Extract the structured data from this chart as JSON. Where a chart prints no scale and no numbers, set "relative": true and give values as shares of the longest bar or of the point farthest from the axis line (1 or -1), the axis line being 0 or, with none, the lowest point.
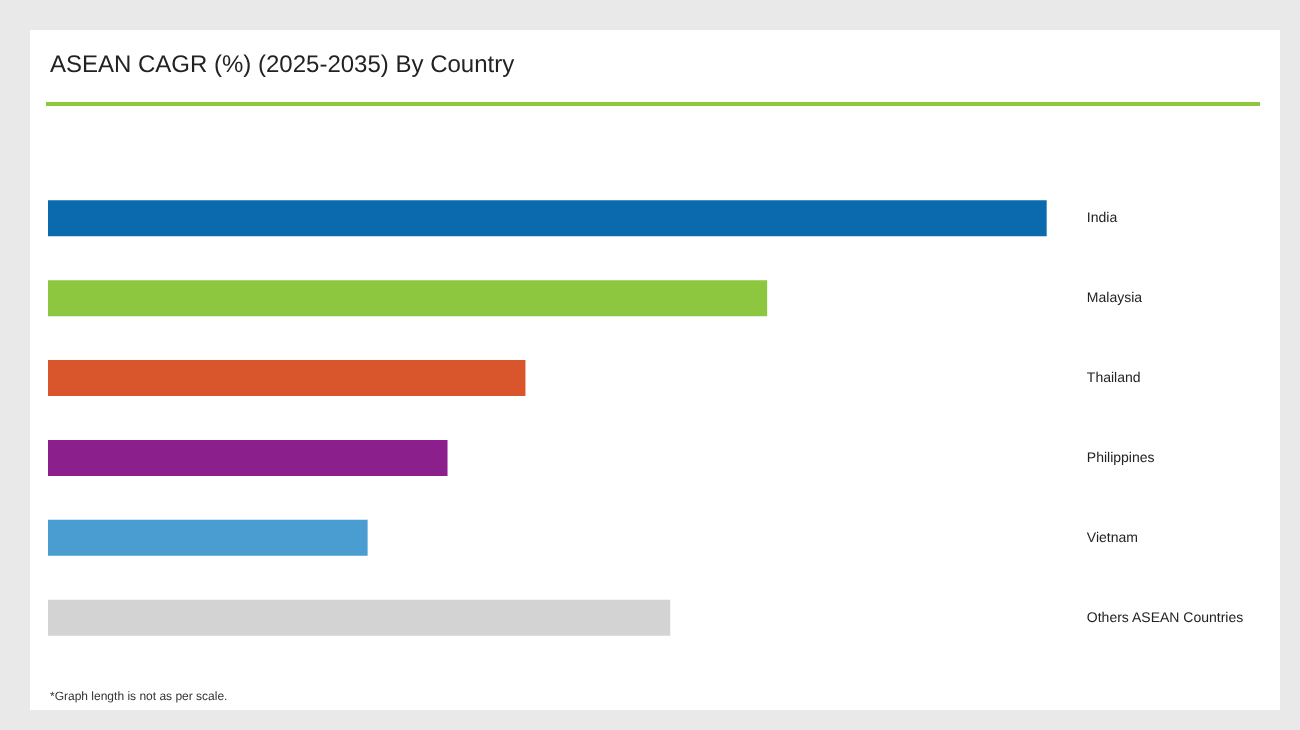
{
  "chart_data": {
    "type": "bar",
    "orientation": "horizontal",
    "relative": true,
    "title": "ASEAN CAGR (%) (2025-2035) By Country",
    "categories": [
      "India",
      "Malaysia",
      "Thailand",
      "Philippines",
      "Vietnam",
      "Others ASEAN Countries"
    ],
    "values": [
      1,
      0.72,
      0.478,
      0.4,
      0.32,
      0.623
    ],
    "colors": [
      "#0b6aad",
      "#8dc63f",
      "#d9552b",
      "#8b1f8c",
      "#4a9dd0",
      "#d3d3d3"
    ],
    "legend": false,
    "annotations": [
      "*Graph length is not as per scale."
    ]
  }
}
